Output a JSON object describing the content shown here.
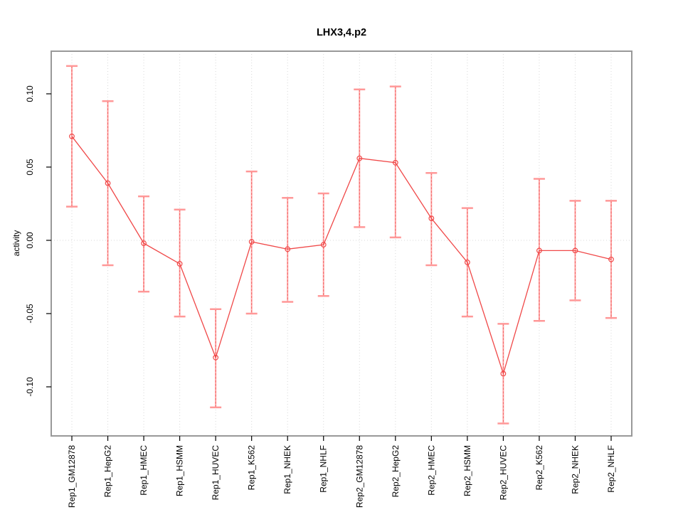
{
  "chart_data": {
    "type": "line",
    "title": "LHX3,4.p2",
    "xlabel": "",
    "ylabel": "activity",
    "legend": "none",
    "categories": [
      "Rep1_GM12878",
      "Rep1_HepG2",
      "Rep1_HMEC",
      "Rep1_HSMM",
      "Rep1_HUVEC",
      "Rep1_K562",
      "Rep1_NHEK",
      "Rep1_NHLF",
      "Rep2_GM12878",
      "Rep2_HepG2",
      "Rep2_HMEC",
      "Rep2_HSMM",
      "Rep2_HUVEC",
      "Rep2_K562",
      "Rep2_NHEK",
      "Rep2_NHLF"
    ],
    "values": [
      0.071,
      0.039,
      -0.002,
      -0.016,
      -0.08,
      -0.001,
      -0.006,
      -0.003,
      0.056,
      0.053,
      0.015,
      -0.015,
      -0.091,
      -0.007,
      -0.007,
      -0.013
    ],
    "error_high": [
      0.119,
      0.095,
      0.03,
      0.021,
      -0.047,
      0.047,
      0.029,
      0.032,
      0.103,
      0.105,
      0.046,
      0.022,
      -0.057,
      0.042,
      0.027,
      0.027
    ],
    "error_low": [
      0.023,
      -0.017,
      -0.035,
      -0.052,
      -0.114,
      -0.05,
      -0.042,
      -0.038,
      0.009,
      0.002,
      -0.017,
      -0.052,
      -0.125,
      -0.055,
      -0.041,
      -0.053
    ],
    "yticks": [
      {
        "value": -0.1,
        "label": "-0.10"
      },
      {
        "value": -0.05,
        "label": "-0.05"
      },
      {
        "value": 0.0,
        "label": "0.00"
      },
      {
        "value": 0.05,
        "label": "0.05"
      },
      {
        "value": 0.1,
        "label": "0.10"
      }
    ],
    "ylim": [
      -0.1335,
      0.1291
    ],
    "grid": {
      "vertical_dotted_per_category": true,
      "horizontal_dotted_at_zero": true
    },
    "colors": {
      "line": "#f04848",
      "point": "#f04848",
      "error_bar": "#ffaaaa",
      "error_bar_dash": "#f05050",
      "error_cap": "#ff9898",
      "grid": "#d8d8d8",
      "frame": "#999999",
      "axis": "#000000",
      "text": "#000000",
      "background": "#ffffff"
    }
  }
}
